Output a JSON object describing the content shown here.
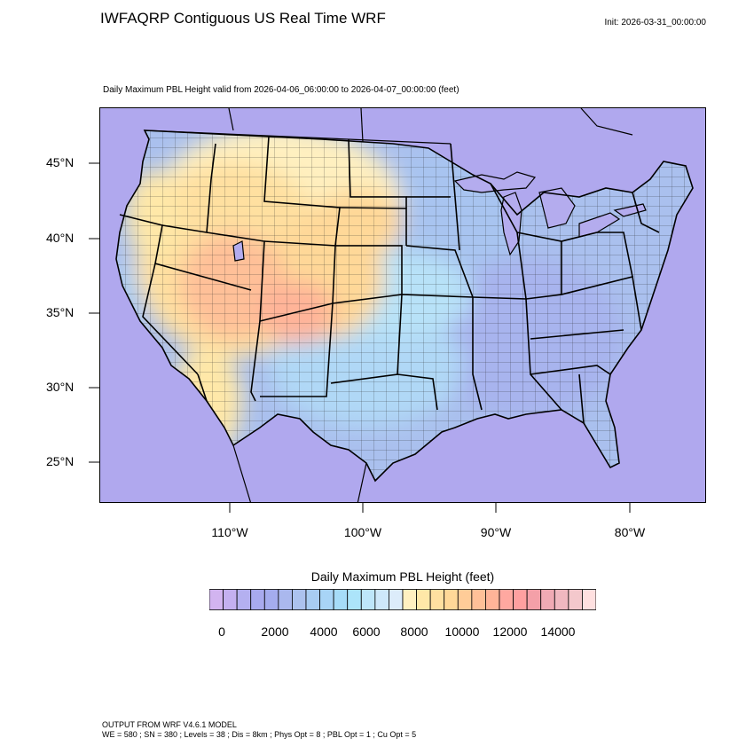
{
  "header": {
    "title": "IWFAQRP Contiguous US Real Time WRF",
    "init": "Init: 2026-03-31_00:00:00"
  },
  "plot": {
    "subtitle": "Daily Maximum PBL Height valid from 2026-04-06_06:00:00 to 2026-04-07_00:00:00   (feet)"
  },
  "axes": {
    "lat_labels": [
      "45°N",
      "40°N",
      "35°N",
      "30°N",
      "25°N"
    ],
    "lon_labels": [
      "110°W",
      "100°W",
      "90°W",
      "80°W"
    ]
  },
  "colorbar": {
    "title": "Daily Maximum PBL Height  (feet)",
    "labels": [
      "0",
      "2000",
      "4000",
      "6000",
      "8000",
      "10000",
      "12000",
      "14000"
    ],
    "colors": [
      "#d2b4f0",
      "#c4b0f0",
      "#b4b0f0",
      "#a8aaee",
      "#a4acee",
      "#aab8ee",
      "#acc2ee",
      "#a8ccf2",
      "#a8d4f6",
      "#a6dcf8",
      "#ace4fa",
      "#bee6fa",
      "#cee8fa",
      "#dcecfa",
      "#fff0c0",
      "#ffe8a8",
      "#ffe0a0",
      "#ffd898",
      "#ffcc98",
      "#ffc098",
      "#ffb498",
      "#ffa8a0",
      "#ffa0a0",
      "#f4a0a8",
      "#f0aab4",
      "#f0b8c0",
      "#f4c8cc",
      "#ffe0e0"
    ]
  },
  "footer": {
    "line1": "OUTPUT FROM WRF V4.6.1 MODEL",
    "line2": "WE = 580 ; SN = 380 ; Levels = 38 ; Dis = 8km ; Phys Opt = 8 ; PBL Opt = 1 ; Cu Opt = 5"
  }
}
